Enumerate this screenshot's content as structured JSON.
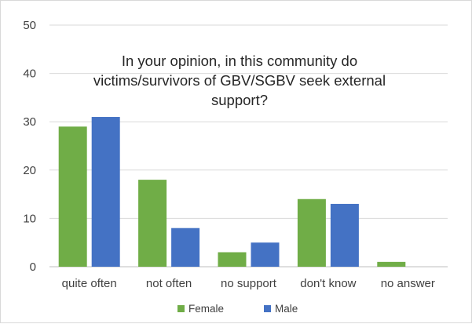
{
  "chart_data": {
    "type": "bar",
    "title_lines": [
      "In your opinion, in this community do",
      "victims/survivors of GBV/SGBV seek external",
      "support?"
    ],
    "categories": [
      "quite often",
      "not often",
      "no support",
      "don't know",
      "no answer"
    ],
    "series": [
      {
        "name": "Female",
        "color": "#70ad47",
        "values": [
          29,
          18,
          3,
          14,
          1
        ]
      },
      {
        "name": "Male",
        "color": "#4472c4",
        "values": [
          31,
          8,
          5,
          13,
          0
        ]
      }
    ],
    "ylim": [
      0,
      50
    ],
    "yticks": [
      0,
      10,
      20,
      30,
      40,
      50
    ],
    "grid": true,
    "legend_position": "bottom"
  }
}
